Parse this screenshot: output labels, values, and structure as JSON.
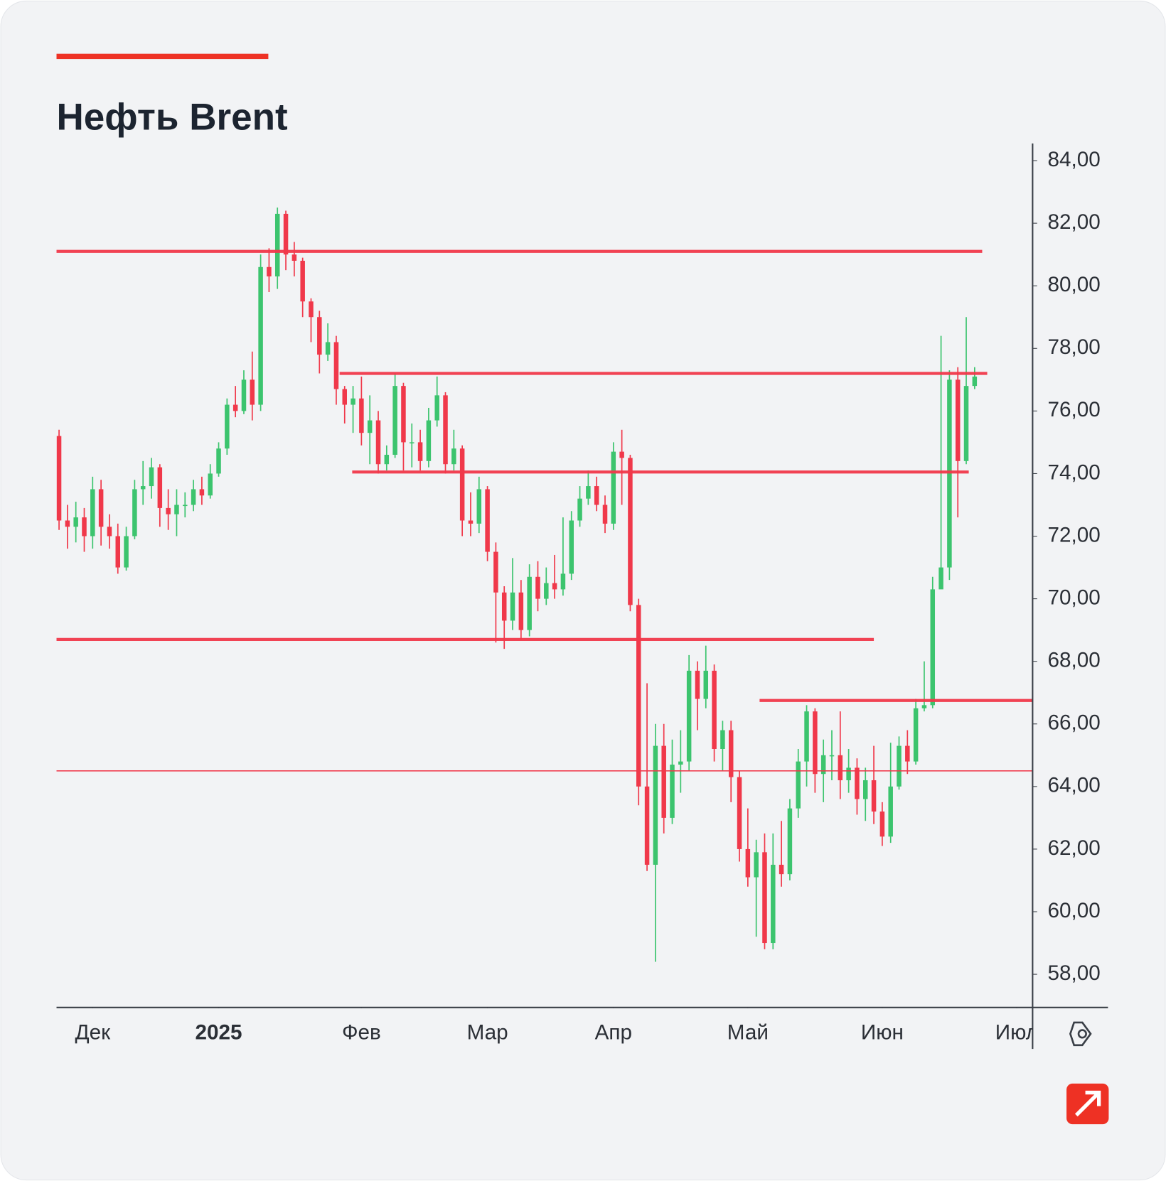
{
  "chart_data": {
    "type": "candlestick",
    "title": "Нефть Brent",
    "up_color": "#3cc46e",
    "down_color": "#f0384a",
    "level_color": "#f0384a",
    "xlim": [
      -0.3,
      115.9
    ],
    "ylim": [
      56.94,
      84.55
    ],
    "yticks": [
      {
        "value": 84,
        "label": "84,00"
      },
      {
        "value": 82,
        "label": "82,00"
      },
      {
        "value": 80,
        "label": "80,00"
      },
      {
        "value": 78,
        "label": "78,00"
      },
      {
        "value": 76,
        "label": "76,00"
      },
      {
        "value": 74,
        "label": "74,00"
      },
      {
        "value": 72,
        "label": "72,00"
      },
      {
        "value": 70,
        "label": "70,00"
      },
      {
        "value": 68,
        "label": "68,00"
      },
      {
        "value": 66,
        "label": "66,00"
      },
      {
        "value": 64,
        "label": "64,00"
      },
      {
        "value": 62,
        "label": "62,00"
      },
      {
        "value": 60,
        "label": "60,00"
      },
      {
        "value": 58,
        "label": "58,00"
      }
    ],
    "xticks": [
      {
        "value": 4,
        "label": "Дек"
      },
      {
        "value": 19,
        "label": "2025"
      },
      {
        "value": 36,
        "label": "Фев"
      },
      {
        "value": 51,
        "label": "Мар"
      },
      {
        "value": 66,
        "label": "Апр"
      },
      {
        "value": 82,
        "label": "Май"
      },
      {
        "value": 98,
        "label": "Июн"
      },
      {
        "value": 114,
        "label": "Июл"
      }
    ],
    "open": [
      75.2,
      72.5,
      72.3,
      72.6,
      72.0,
      73.5,
      72.3,
      72.0,
      71.0,
      72.0,
      73.5,
      73.6,
      74.2,
      72.9,
      72.7,
      73.0,
      73.0,
      73.5,
      73.3,
      74.0,
      74.8,
      76.2,
      76.0,
      77.0,
      76.2,
      80.6,
      80.3,
      82.3,
      81.0,
      80.8,
      79.5,
      79.0,
      77.8,
      78.2,
      76.7,
      76.2,
      76.4,
      75.3,
      75.7,
      74.3,
      74.6,
      76.8,
      75.0,
      75.0,
      74.4,
      75.7,
      76.5,
      74.3,
      74.8,
      72.5,
      72.4,
      73.5,
      71.5,
      70.2,
      69.3,
      70.2,
      69.0,
      70.7,
      70.0,
      70.5,
      70.3,
      70.8,
      72.5,
      73.2,
      73.6,
      73.0,
      72.4,
      74.7,
      74.5,
      69.8,
      64.0,
      61.5,
      65.3,
      63.0,
      64.7,
      64.8,
      67.7,
      66.8,
      67.7,
      65.2,
      65.8,
      64.3,
      62.0,
      61.1,
      61.9,
      59.0,
      61.5,
      61.2,
      63.3,
      64.8,
      66.4,
      64.4,
      65.0,
      65.0,
      64.2,
      64.6,
      63.6,
      64.2,
      63.2,
      62.4,
      64.0,
      65.3,
      64.8,
      66.5,
      66.6,
      70.3,
      71.0,
      77.0,
      74.4,
      76.8
    ],
    "high": [
      75.4,
      73.0,
      73.1,
      72.9,
      73.9,
      73.8,
      72.7,
      72.4,
      72.3,
      73.8,
      74.4,
      74.5,
      74.3,
      73.5,
      73.5,
      73.4,
      73.8,
      73.9,
      74.3,
      75.0,
      76.4,
      76.8,
      77.3,
      77.9,
      81.0,
      81.2,
      82.5,
      82.4,
      81.4,
      80.9,
      79.6,
      79.2,
      78.8,
      78.4,
      76.8,
      76.8,
      77.1,
      76.5,
      76.0,
      74.9,
      77.2,
      76.9,
      75.6,
      75.4,
      76.1,
      77.1,
      76.6,
      75.4,
      74.9,
      73.4,
      73.9,
      73.6,
      71.8,
      70.4,
      71.3,
      70.6,
      71.1,
      71.2,
      71.0,
      71.4,
      72.6,
      72.8,
      73.6,
      74.1,
      73.9,
      73.3,
      75.0,
      75.4,
      74.6,
      70.0,
      67.3,
      66.0,
      66.0,
      65.5,
      65.8,
      68.2,
      68.0,
      68.5,
      67.9,
      66.1,
      66.1,
      64.5,
      63.3,
      62.3,
      62.5,
      62.5,
      62.9,
      63.6,
      65.2,
      66.6,
      66.5,
      65.5,
      65.8,
      66.4,
      65.2,
      64.9,
      64.6,
      65.3,
      63.5,
      65.4,
      65.6,
      65.8,
      66.8,
      68.0,
      70.7,
      78.4,
      77.3,
      77.4,
      79.0,
      77.4
    ],
    "low": [
      72.2,
      71.6,
      71.8,
      71.5,
      71.6,
      71.7,
      71.6,
      70.8,
      70.9,
      71.9,
      73.0,
      73.2,
      72.3,
      72.2,
      72.0,
      72.6,
      72.8,
      73.0,
      73.2,
      73.9,
      74.6,
      75.8,
      75.9,
      75.7,
      76.0,
      79.8,
      79.9,
      80.5,
      80.3,
      79.0,
      78.2,
      77.2,
      77.6,
      76.2,
      75.6,
      75.3,
      74.9,
      74.3,
      74.0,
      74.1,
      74.5,
      74.1,
      74.2,
      74.1,
      74.2,
      75.5,
      74.0,
      74.1,
      72.0,
      72.0,
      72.1,
      71.2,
      68.6,
      68.4,
      69.0,
      68.7,
      68.8,
      69.6,
      69.8,
      70.0,
      70.1,
      70.6,
      72.3,
      73.0,
      72.8,
      72.1,
      72.2,
      73.0,
      69.6,
      63.4,
      61.3,
      58.4,
      62.5,
      62.8,
      63.8,
      64.5,
      65.8,
      66.5,
      64.8,
      64.5,
      63.5,
      61.6,
      60.8,
      59.2,
      58.8,
      58.8,
      60.8,
      61.0,
      63.0,
      64.0,
      63.8,
      63.5,
      64.2,
      63.6,
      63.8,
      63.1,
      62.9,
      62.8,
      62.1,
      62.2,
      63.9,
      64.4,
      64.7,
      66.4,
      66.5,
      70.5,
      70.6,
      72.6,
      74.3,
      76.7
    ],
    "close": [
      72.5,
      72.3,
      72.6,
      72.0,
      73.5,
      72.3,
      72.0,
      71.0,
      72.0,
      73.5,
      73.6,
      74.2,
      72.9,
      72.7,
      73.0,
      73.0,
      73.5,
      73.3,
      74.0,
      74.8,
      76.2,
      76.0,
      77.0,
      76.2,
      80.6,
      80.3,
      82.3,
      81.0,
      80.8,
      79.5,
      79.0,
      77.8,
      78.2,
      76.7,
      76.2,
      76.4,
      75.3,
      75.7,
      74.3,
      74.6,
      76.8,
      75.0,
      75.0,
      74.4,
      75.7,
      76.5,
      74.3,
      74.8,
      72.5,
      72.4,
      73.5,
      71.5,
      70.2,
      69.3,
      70.2,
      69.0,
      70.7,
      70.0,
      70.5,
      70.3,
      70.8,
      72.5,
      73.2,
      73.6,
      73.0,
      72.4,
      74.7,
      74.5,
      69.8,
      64.0,
      61.5,
      65.3,
      63.0,
      64.7,
      64.8,
      67.7,
      66.8,
      67.7,
      65.2,
      65.8,
      64.3,
      62.0,
      61.1,
      61.9,
      59.0,
      61.5,
      61.2,
      63.3,
      64.8,
      66.4,
      64.4,
      65.0,
      65.0,
      64.2,
      64.6,
      63.6,
      64.2,
      63.2,
      62.4,
      64.0,
      65.3,
      64.8,
      66.5,
      66.6,
      70.3,
      71.0,
      77.0,
      74.4,
      76.8,
      77.1
    ],
    "levels": [
      {
        "value": 81.1,
        "start": -0.3,
        "end": 109.9
      },
      {
        "value": 77.2,
        "start": 33.4,
        "end": 110.5
      },
      {
        "value": 74.05,
        "start": 34.9,
        "end": 108.3
      },
      {
        "value": 68.7,
        "start": -0.3,
        "end": 97.0
      },
      {
        "value": 66.75,
        "start": 83.4,
        "end": 115.9
      },
      {
        "value": 64.5,
        "start": -0.3,
        "end": 115.9
      }
    ]
  }
}
